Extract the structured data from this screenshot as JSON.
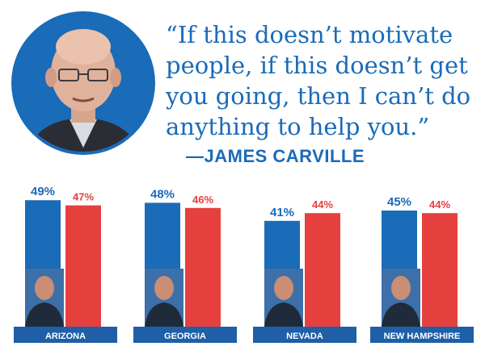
{
  "quote": {
    "text": "“If this doesn’t motivate people, if this doesn’t get you going, then I can’t do anything to help you.”",
    "attribution": "—JAMES CARVILLE"
  },
  "colors": {
    "blue": "#1a6bb8",
    "red": "#e5403e",
    "state_bar": "#1e5fa8"
  },
  "chart_data": {
    "type": "bar",
    "categories": [
      "ARIZONA",
      "GEORGIA",
      "NEVADA",
      "NEW HAMPSHIRE"
    ],
    "series": [
      {
        "values": [
          49,
          48,
          41,
          45
        ],
        "labels": [
          "49%",
          "48%",
          "41%",
          "45%"
        ],
        "color": "#1a6bb8"
      },
      {
        "values": [
          47,
          46,
          44,
          44
        ],
        "labels": [
          "47%",
          "46%",
          "44%",
          "44%"
        ],
        "color": "#e5403e"
      }
    ],
    "title": "",
    "xlabel": "",
    "ylabel": "",
    "grid": false
  }
}
